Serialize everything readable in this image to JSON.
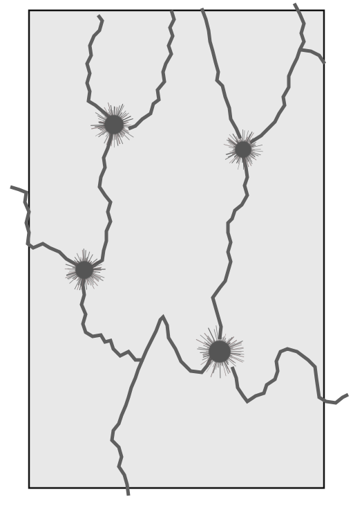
{
  "figure": {
    "colors": {
      "page_background": "#ffffff",
      "panel_fill": "#e8e8e8",
      "panel_border": "#111111",
      "crack": "#5f5f5f",
      "burst": "#555555",
      "burst_tint": "#7a6a6a"
    },
    "panel": {
      "description_visible": false
    },
    "cracks": [
      {
        "name": "crack-top-left-loop"
      },
      {
        "name": "crack-top-right-loop"
      },
      {
        "name": "crack-left-branch"
      },
      {
        "name": "crack-center-spine"
      },
      {
        "name": "crack-bottom-left"
      },
      {
        "name": "crack-bottom-right"
      }
    ],
    "bursts": [
      {
        "name": "burst-upper-left"
      },
      {
        "name": "burst-upper-right"
      },
      {
        "name": "burst-middle-left"
      },
      {
        "name": "burst-lower-center"
      }
    ]
  }
}
